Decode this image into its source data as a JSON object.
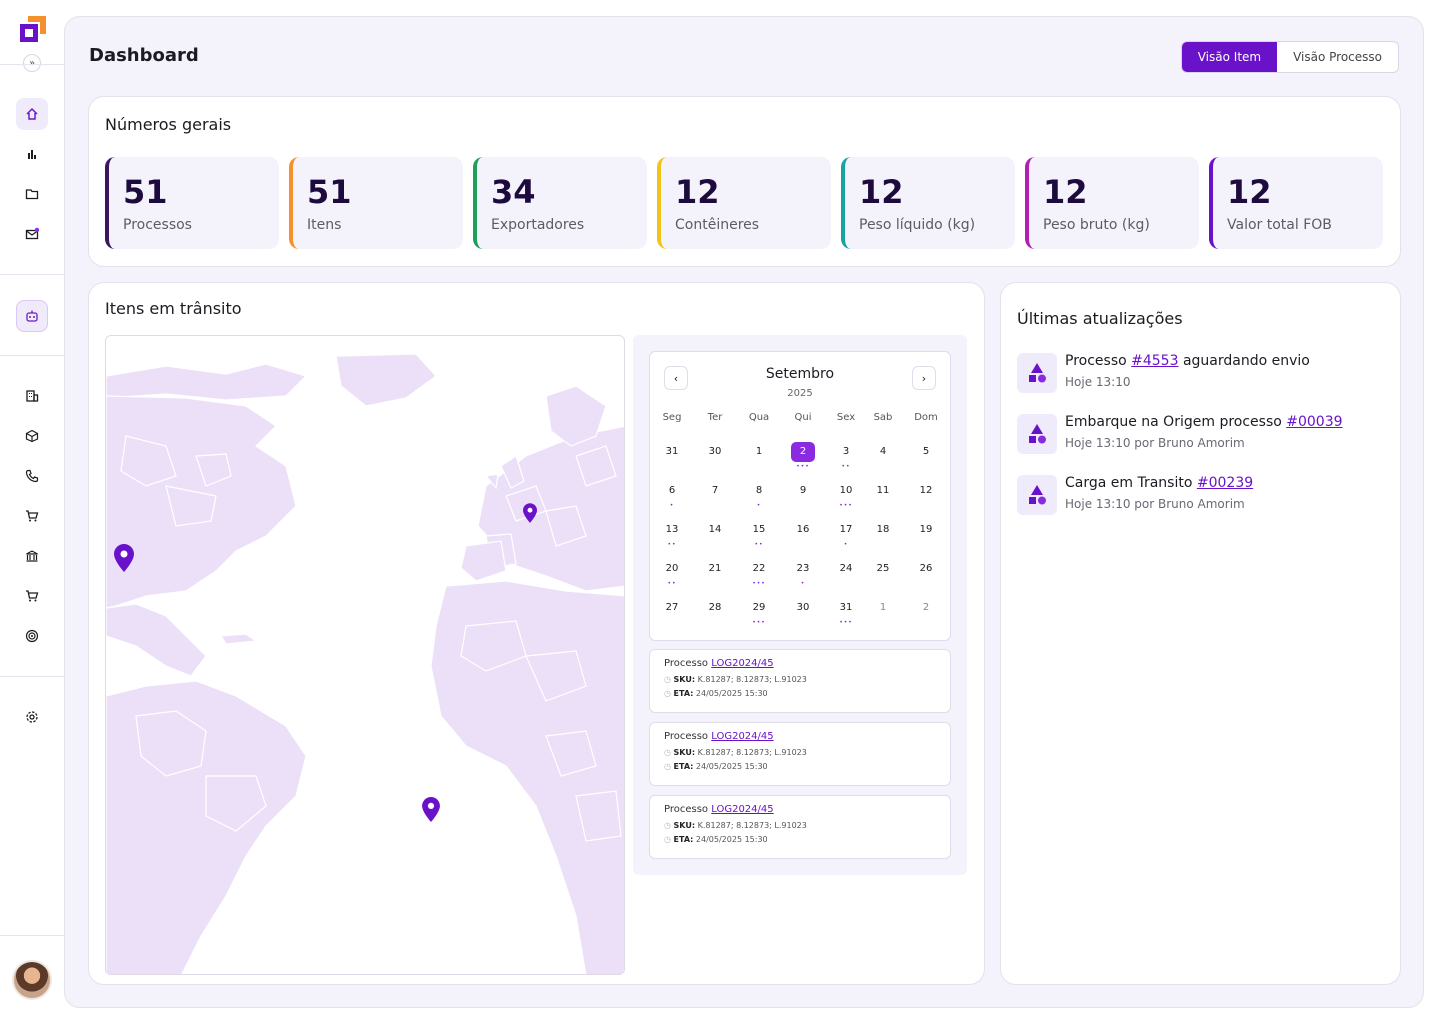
{
  "page": {
    "title": "Dashboard"
  },
  "view_toggle": {
    "item": "Visão Item",
    "process": "Visão Processo"
  },
  "overview": {
    "title": "Números gerais",
    "stats": [
      {
        "value": "51",
        "label": "Processos",
        "color": "#3a1660"
      },
      {
        "value": "51",
        "label": "Itens",
        "color": "#f5912c"
      },
      {
        "value": "34",
        "label": "Exportadores",
        "color": "#1f9e5c"
      },
      {
        "value": "12",
        "label": "Contêineres",
        "color": "#f2c318"
      },
      {
        "value": "12",
        "label": "Peso líquido (kg)",
        "color": "#1aa3a3"
      },
      {
        "value": "12",
        "label": "Peso bruto (kg)",
        "color": "#b31fb3"
      },
      {
        "value": "12",
        "label": "Valor total FOB",
        "color": "#6a12c9"
      }
    ]
  },
  "transit": {
    "title": "Itens em trânsito"
  },
  "calendar": {
    "month": "Setembro",
    "year": "2025",
    "weekdays": [
      "Seg",
      "Ter",
      "Qua",
      "Qui",
      "Sex",
      "Sab",
      "Dom"
    ],
    "days": [
      [
        "31",
        "30",
        "1",
        "2",
        "3",
        "4",
        "5"
      ],
      [
        "6",
        "7",
        "8",
        "9",
        "10",
        "11",
        "12"
      ],
      [
        "13",
        "14",
        "15",
        "16",
        "17",
        "18",
        "19"
      ],
      [
        "20",
        "21",
        "22",
        "23",
        "24",
        "25",
        "26"
      ],
      [
        "27",
        "28",
        "29",
        "30",
        "31",
        "1",
        "2"
      ]
    ]
  },
  "processes": [
    {
      "prefix": "Processo",
      "code": "LOG2024/45",
      "sku_label": "SKU:",
      "sku": "K.81287; 8.12873; L.91023",
      "eta_label": "ETA:",
      "eta": "24/05/2025 15:30"
    },
    {
      "prefix": "Processo",
      "code": "LOG2024/45",
      "sku_label": "SKU:",
      "sku": "K.81287; 8.12873; L.91023",
      "eta_label": "ETA:",
      "eta": "24/05/2025 15:30"
    },
    {
      "prefix": "Processo",
      "code": "LOG2024/45",
      "sku_label": "SKU:",
      "sku": "K.81287; 8.12873; L.91023",
      "eta_label": "ETA:",
      "eta": "24/05/2025 15:30"
    }
  ],
  "updates": {
    "title": "Últimas atualizações",
    "items": [
      {
        "text": "Processo",
        "link": "#4553",
        "suffix": " aguardando envio",
        "sub": "Hoje 13:10"
      },
      {
        "text": "Embarque na Origem processo",
        "link": "#00039",
        "suffix": "",
        "sub": "Hoje 13:10 por Bruno Amorim"
      },
      {
        "text": "Carga em Transito ",
        "link": "#00239",
        "suffix": "",
        "sub": "Hoje 13:10 por Bruno Amorim"
      }
    ]
  },
  "colors": {
    "accent": "#6a12c9",
    "land": "#ebe0f8",
    "pin": "#6a12c9"
  }
}
